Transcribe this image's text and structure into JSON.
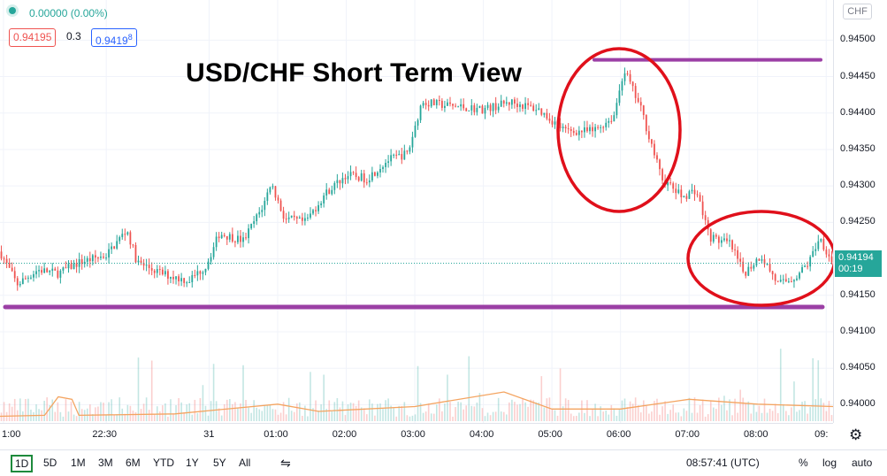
{
  "legend": {
    "change": "0.00000 (0.00%)",
    "bid": "0.94195",
    "spread": "0.3",
    "ask": "0.9419",
    "ask_superscript": "8"
  },
  "currency": "CHF",
  "last_price": {
    "price": "0.94194",
    "countdown": "00:19"
  },
  "bottom_bar": {
    "timeframes": [
      "1D",
      "5D",
      "1M",
      "3M",
      "6M",
      "YTD",
      "1Y",
      "5Y",
      "All"
    ],
    "active_timeframe": "1D",
    "clock": "08:57:41 (UTC)",
    "percent": "%",
    "log": "log",
    "auto": "auto"
  },
  "colors": {
    "up": "#26a69a",
    "down": "#ef5350",
    "volume_ma": "#f4a460",
    "annotation_line": "#9b3fa5",
    "annotation_circle": "#e0101b"
  },
  "chart_data": {
    "type": "candlestick",
    "title": "USD/CHF Short Term View",
    "price_ticks": [
      "0.94500",
      "0.94450",
      "0.94400",
      "0.94350",
      "0.94300",
      "0.94250",
      "0.94200",
      "0.94150",
      "0.94100",
      "0.94050",
      "0.94000"
    ],
    "price_ticks_values": [
      0.945,
      0.9445,
      0.944,
      0.9435,
      0.943,
      0.9425,
      0.942,
      0.9415,
      0.941,
      0.9405,
      0.94
    ],
    "ylim": [
      0.93975,
      0.94555
    ],
    "time_ticks": [
      "1:00",
      "22:30",
      "31",
      "01:00",
      "02:00",
      "03:00",
      "04:00",
      "05:00",
      "06:00",
      "07:00",
      "08:00",
      "09:"
    ],
    "time_ticks_hours": [
      -3.0,
      -1.5,
      0,
      1,
      2,
      3,
      4,
      5,
      6,
      7,
      8,
      9
    ],
    "xlim_hours": [
      -3.05,
      9.1
    ],
    "last_price": 0.94194,
    "price_path": [
      [
        -3.05,
        0.9421
      ],
      [
        -2.8,
        0.94165
      ],
      [
        -2.5,
        0.94185
      ],
      [
        -2.2,
        0.9418
      ],
      [
        -1.9,
        0.94195
      ],
      [
        -1.5,
        0.94205
      ],
      [
        -1.2,
        0.9424
      ],
      [
        -1.05,
        0.94195
      ],
      [
        -0.7,
        0.9418
      ],
      [
        -0.3,
        0.9417
      ],
      [
        -0.05,
        0.9419
      ],
      [
        0.15,
        0.94235
      ],
      [
        0.5,
        0.94225
      ],
      [
        0.8,
        0.94275
      ],
      [
        0.9,
        0.94305
      ],
      [
        1.1,
        0.94255
      ],
      [
        1.4,
        0.9425
      ],
      [
        1.7,
        0.9429
      ],
      [
        2.0,
        0.94315
      ],
      [
        2.3,
        0.9431
      ],
      [
        2.6,
        0.94335
      ],
      [
        2.9,
        0.94345
      ],
      [
        3.1,
        0.94415
      ],
      [
        3.5,
        0.9441
      ],
      [
        4.0,
        0.94405
      ],
      [
        4.4,
        0.94415
      ],
      [
        4.8,
        0.94405
      ],
      [
        5.2,
        0.94375
      ],
      [
        5.6,
        0.94375
      ],
      [
        5.9,
        0.94395
      ],
      [
        6.05,
        0.9446
      ],
      [
        6.3,
        0.94405
      ],
      [
        6.6,
        0.9431
      ],
      [
        6.9,
        0.94285
      ],
      [
        7.1,
        0.94295
      ],
      [
        7.3,
        0.9423
      ],
      [
        7.6,
        0.9422
      ],
      [
        7.8,
        0.9418
      ],
      [
        8.05,
        0.94205
      ],
      [
        8.3,
        0.94165
      ],
      [
        8.55,
        0.94175
      ],
      [
        8.75,
        0.94195
      ],
      [
        8.9,
        0.9423
      ],
      [
        9.1,
        0.94194
      ]
    ],
    "volume_ma_path": [
      [
        -3.05,
        0.1
      ],
      [
        -2.4,
        0.12
      ],
      [
        -2.2,
        0.5
      ],
      [
        -2.0,
        0.45
      ],
      [
        -1.9,
        0.12
      ],
      [
        -0.5,
        0.15
      ],
      [
        1.0,
        0.35
      ],
      [
        1.6,
        0.2
      ],
      [
        3.0,
        0.3
      ],
      [
        4.3,
        0.6
      ],
      [
        5.0,
        0.25
      ],
      [
        6.0,
        0.25
      ],
      [
        7.0,
        0.45
      ],
      [
        8.0,
        0.35
      ],
      [
        9.1,
        0.3
      ]
    ],
    "annotations": {
      "resistance_line": 0.94473,
      "support_line": 0.94134
    }
  }
}
